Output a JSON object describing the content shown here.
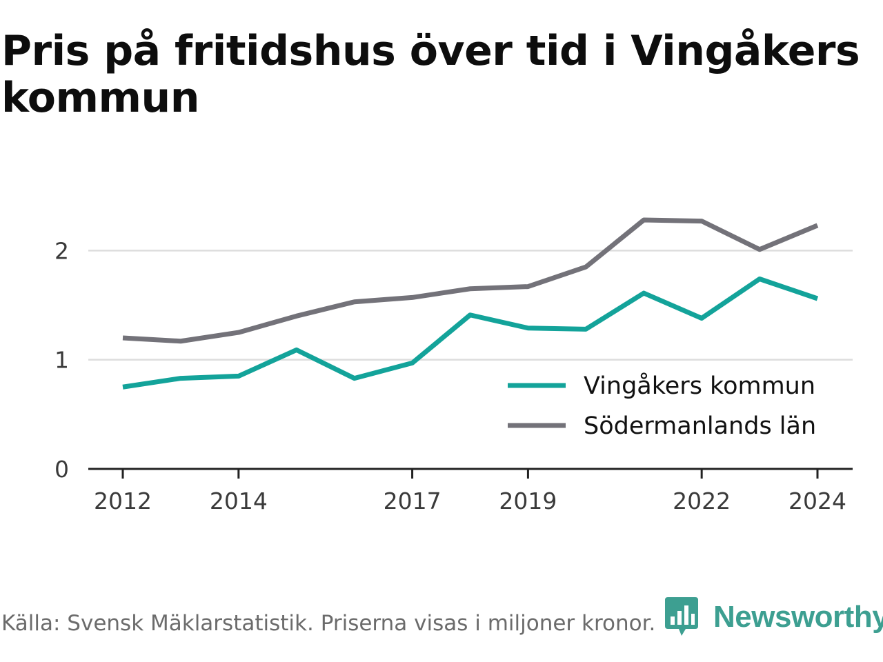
{
  "header": {
    "title": "Pris på fritidshus över tid i Vingåkers kommun"
  },
  "footer": {
    "source": "Källa: Svensk Mäklarstatistik. Priserna visas i miljoner kronor.",
    "brand": "Newsworthy",
    "brand_icon": "bar-chart-speech-bubble-icon",
    "brand_color": "#3d9f91"
  },
  "chart_data": {
    "type": "line",
    "x": [
      2012,
      2013,
      2014,
      2015,
      2016,
      2017,
      2018,
      2019,
      2020,
      2021,
      2022,
      2023,
      2024
    ],
    "series": [
      {
        "name": "Vingåkers kommun",
        "color": "#13a39a",
        "values": [
          0.75,
          0.83,
          0.85,
          1.09,
          0.83,
          0.97,
          1.41,
          1.29,
          1.28,
          1.61,
          1.38,
          1.74,
          1.56
        ]
      },
      {
        "name": "Södermanlands län",
        "color": "#737279",
        "values": [
          1.2,
          1.17,
          1.25,
          1.4,
          1.53,
          1.57,
          1.65,
          1.67,
          1.85,
          2.28,
          2.27,
          2.01,
          2.23
        ]
      }
    ],
    "x_ticks": [
      "2012",
      "2014",
      "2017",
      "2019",
      "2022",
      "2024"
    ],
    "y_ticks": [
      "0",
      "1",
      "2"
    ],
    "ylim": [
      0,
      2.4
    ],
    "xlim": [
      2012,
      2024
    ],
    "grid": "horizontal",
    "legend_position": "bottom-right",
    "xlabel": "",
    "ylabel": ""
  }
}
